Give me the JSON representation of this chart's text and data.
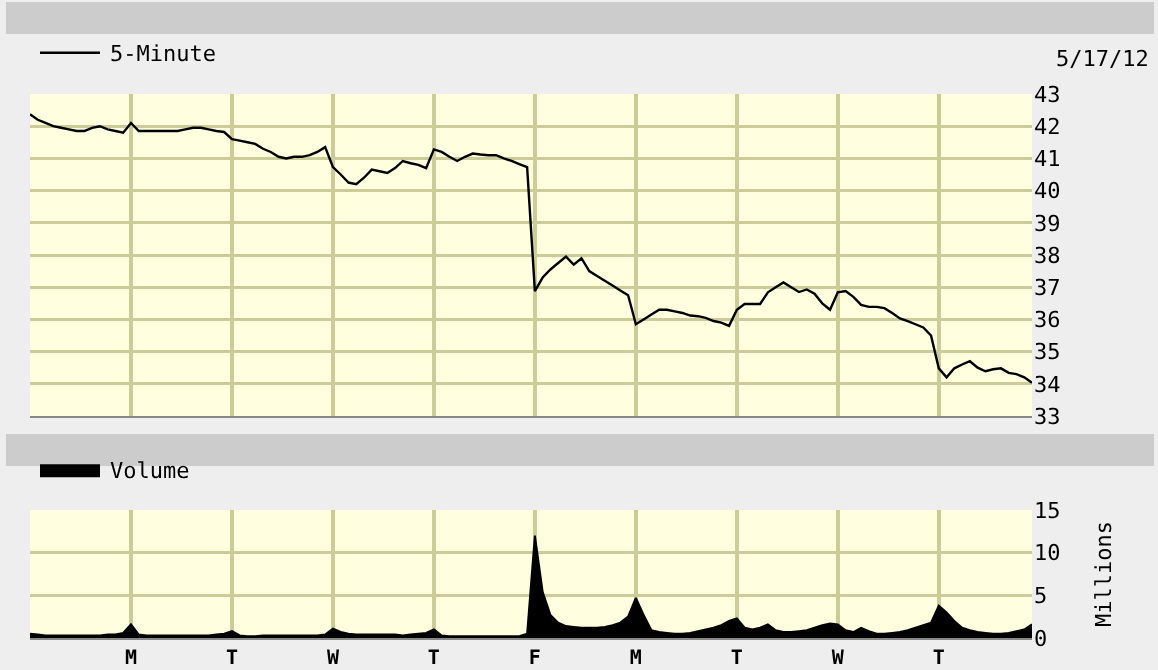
{
  "chart_data": [
    {
      "type": "line",
      "legend": "top left",
      "grid": true,
      "tick_labels": "y",
      "annotations": [
        "5/17/12"
      ],
      "categories": [
        null,
        null,
        null,
        null,
        null,
        null,
        null,
        null,
        null,
        null,
        null,
        null,
        null,
        null,
        null,
        null,
        null,
        null,
        null,
        null,
        null,
        null,
        null,
        null,
        null,
        null,
        null,
        null,
        null,
        null,
        null,
        null,
        null,
        null,
        null,
        null,
        null,
        null,
        null,
        null,
        null,
        null,
        null,
        null,
        null,
        null,
        null,
        null,
        null,
        null,
        null,
        null,
        null,
        null,
        null,
        null,
        null,
        null,
        null,
        null,
        null,
        null,
        null,
        null,
        null,
        null,
        null,
        null,
        null,
        null,
        null,
        null,
        null,
        null,
        null,
        null,
        null,
        null,
        null,
        null,
        null,
        null,
        null,
        null,
        null,
        null,
        null,
        null,
        null,
        null,
        null,
        null,
        null,
        null,
        null,
        null,
        null,
        null,
        null,
        null,
        null,
        null,
        null,
        null,
        null,
        null,
        null,
        null,
        null,
        null,
        null,
        null,
        null,
        null,
        null,
        null,
        null,
        null,
        null,
        null,
        null,
        null,
        null,
        null,
        null,
        null,
        null,
        null,
        null,
        null
      ],
      "ylim": [
        33,
        43
      ],
      "yticks": [
        33,
        34,
        35,
        36,
        37,
        38,
        39,
        40,
        41,
        42,
        43
      ],
      "series": [
        {
          "name": "5-Minute",
          "color": "#000000",
          "values": [
            42.37,
            42.2,
            42.1,
            42.0,
            41.95,
            41.9,
            41.85,
            41.85,
            41.95,
            42.0,
            41.9,
            41.85,
            41.8,
            42.1,
            41.85,
            41.85,
            41.85,
            41.85,
            41.85,
            41.85,
            41.9,
            41.95,
            41.95,
            41.9,
            41.85,
            41.82,
            41.6,
            41.55,
            41.5,
            41.45,
            41.3,
            41.2,
            41.05,
            41.0,
            41.05,
            41.05,
            41.1,
            41.2,
            41.35,
            40.73,
            40.5,
            40.25,
            40.2,
            40.4,
            40.65,
            40.6,
            40.55,
            40.7,
            40.92,
            40.85,
            40.8,
            40.7,
            41.28,
            41.2,
            41.05,
            40.92,
            41.05,
            41.15,
            41.12,
            41.1,
            41.1,
            41.0,
            40.92,
            40.82,
            40.73,
            36.88,
            37.3,
            37.55,
            37.75,
            37.95,
            37.7,
            37.9,
            37.5,
            37.35,
            37.2,
            37.05,
            36.9,
            36.75,
            35.85,
            36.0,
            36.15,
            36.3,
            36.3,
            36.25,
            36.2,
            36.12,
            36.1,
            36.05,
            35.95,
            35.9,
            35.8,
            36.3,
            36.48,
            36.48,
            36.48,
            36.84,
            37.0,
            37.15,
            37.0,
            36.85,
            36.93,
            36.8,
            36.5,
            36.3,
            36.84,
            36.88,
            36.7,
            36.45,
            36.39,
            36.39,
            36.35,
            36.2,
            36.03,
            35.95,
            35.85,
            35.75,
            35.5,
            34.48,
            34.2,
            34.48,
            34.6,
            34.7,
            34.5,
            34.39,
            34.45,
            34.48,
            34.34,
            34.3,
            34.2,
            34.03
          ]
        }
      ]
    },
    {
      "type": "area",
      "legend": "top left",
      "grid": true,
      "ylabel": "Millions",
      "categories": [
        null,
        null,
        null,
        null,
        null,
        null,
        null,
        null,
        null,
        null,
        null,
        null,
        null,
        "M",
        null,
        null,
        null,
        null,
        null,
        null,
        null,
        null,
        null,
        null,
        null,
        null,
        "T",
        null,
        null,
        null,
        null,
        null,
        null,
        null,
        null,
        null,
        null,
        null,
        null,
        "W",
        null,
        null,
        null,
        null,
        null,
        null,
        null,
        null,
        null,
        null,
        null,
        null,
        "T",
        null,
        null,
        null,
        null,
        null,
        null,
        null,
        null,
        null,
        null,
        null,
        null,
        "F",
        null,
        null,
        null,
        null,
        null,
        null,
        null,
        null,
        null,
        null,
        null,
        null,
        "M",
        null,
        null,
        null,
        null,
        null,
        null,
        null,
        null,
        null,
        null,
        null,
        null,
        "T",
        null,
        null,
        null,
        null,
        null,
        null,
        null,
        null,
        null,
        null,
        null,
        null,
        "W",
        null,
        null,
        null,
        null,
        null,
        null,
        null,
        null,
        null,
        null,
        null,
        null,
        "T",
        null,
        null,
        null,
        null,
        null,
        null,
        null,
        null,
        null,
        null,
        null,
        null
      ],
      "ylim": [
        0,
        15
      ],
      "yticks": [
        0,
        5,
        10,
        15
      ],
      "series": [
        {
          "name": "Volume",
          "color": "#000000",
          "values": [
            0.5,
            0.4,
            0.3,
            0.3,
            0.3,
            0.3,
            0.3,
            0.3,
            0.3,
            0.3,
            0.4,
            0.4,
            0.6,
            1.6,
            0.4,
            0.3,
            0.3,
            0.3,
            0.3,
            0.3,
            0.3,
            0.3,
            0.3,
            0.3,
            0.4,
            0.5,
            0.8,
            0.3,
            0.2,
            0.2,
            0.3,
            0.3,
            0.3,
            0.3,
            0.3,
            0.3,
            0.3,
            0.3,
            0.4,
            1.1,
            0.7,
            0.5,
            0.4,
            0.4,
            0.4,
            0.4,
            0.4,
            0.4,
            0.3,
            0.4,
            0.5,
            0.6,
            1.0,
            0.3,
            0.2,
            0.2,
            0.2,
            0.2,
            0.2,
            0.2,
            0.2,
            0.2,
            0.2,
            0.2,
            0.5,
            12.0,
            5.4,
            2.7,
            1.8,
            1.4,
            1.3,
            1.2,
            1.2,
            1.2,
            1.3,
            1.5,
            1.8,
            2.5,
            4.7,
            2.7,
            0.9,
            0.7,
            0.6,
            0.5,
            0.5,
            0.6,
            0.8,
            1.0,
            1.2,
            1.5,
            2.0,
            2.3,
            1.2,
            1.0,
            1.2,
            1.6,
            0.9,
            0.7,
            0.7,
            0.8,
            0.9,
            1.2,
            1.5,
            1.7,
            1.6,
            0.9,
            0.7,
            1.2,
            0.8,
            0.5,
            0.5,
            0.6,
            0.7,
            0.9,
            1.2,
            1.5,
            1.8,
            3.8,
            3.0,
            2.0,
            1.2,
            0.9,
            0.7,
            0.6,
            0.5,
            0.5,
            0.6,
            0.8,
            1.0,
            1.6
          ]
        }
      ]
    }
  ]
}
